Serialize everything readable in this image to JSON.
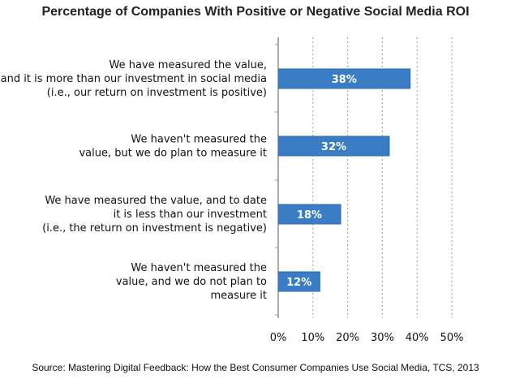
{
  "title": "Percentage of Companies With Positive or Negative Social Media ROI",
  "source": "Source: Mastering Digital Feedback: How the Best Consumer Companies Use Social Media, TCS, 2013",
  "colors": {
    "bar": "#3a7dc4",
    "bar_edge": "#2a6aae",
    "grid": "#9a9a9a",
    "axis": "#555555"
  },
  "chart_data": {
    "type": "bar",
    "orientation": "horizontal",
    "categories": [
      [
        "We have measured the  value,",
        "and it is more than our investment in social media",
        "(i.e., our return on investment is positive)"
      ],
      [
        "We haven't measured the",
        "value, but we do plan to measure it"
      ],
      [
        "We have measured the value, and to date",
        "it is less than our investment",
        "(i.e., the return on investment is negative)"
      ],
      [
        "We haven't measured the",
        "value, and we do not plan to",
        "measure it"
      ]
    ],
    "values": [
      38,
      32,
      18,
      12
    ],
    "data_labels": [
      "38%",
      "32%",
      "18%",
      "12%"
    ],
    "xlim": [
      0,
      50
    ],
    "xticks": [
      "0%",
      "10%",
      "20%",
      "30%",
      "40%",
      "50%"
    ],
    "grid": "vertical dashed",
    "legend": "none"
  }
}
